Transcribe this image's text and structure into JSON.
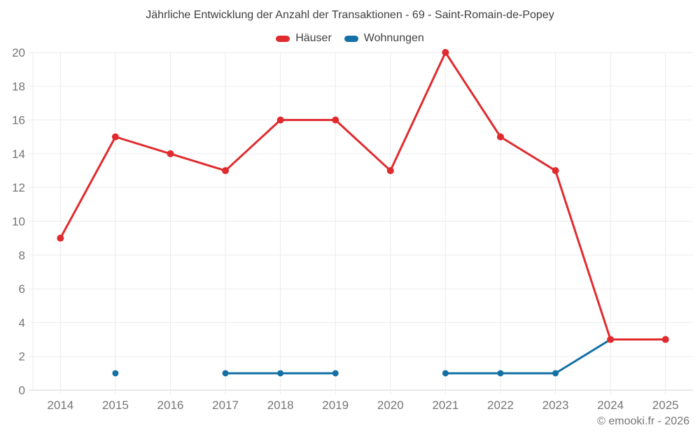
{
  "page": {
    "title": "Jährliche Entwicklung der Anzahl der Transaktionen - 69 - Saint-Romain-de-Popey",
    "footer": "© emooki.fr - 2026"
  },
  "colors": {
    "hauser_red": "#e02b2e",
    "wohnungen_blue": "#1570a6",
    "gridline": "#ebebeb",
    "axis_line": "#d2d2d2",
    "tick_text": "#757575",
    "title_text": "#3f3f3f",
    "legend_text": "#424242"
  },
  "chart_data": {
    "type": "line",
    "title": "Jährliche Entwicklung der Anzahl der Transaktionen - 69 - Saint-Romain-de-Popey",
    "categories": [
      "2014",
      "2015",
      "2016",
      "2017",
      "2018",
      "2019",
      "2020",
      "2021",
      "2022",
      "2023",
      "2024",
      "2025"
    ],
    "series": [
      {
        "name": "Häuser",
        "color": "#e02b2e",
        "values": [
          9,
          15,
          14,
          13,
          16,
          16,
          13,
          20,
          15,
          13,
          3,
          3
        ]
      },
      {
        "name": "Wohnungen",
        "color": "#1570a6",
        "values": [
          null,
          1,
          null,
          1,
          1,
          1,
          null,
          1,
          1,
          1,
          3,
          null
        ]
      }
    ],
    "xlabel": "",
    "ylabel": "",
    "ylim": [
      0,
      20
    ],
    "ytick_step": 2,
    "grid": true,
    "legend_position": "top",
    "footer": "© emooki.fr - 2026"
  }
}
